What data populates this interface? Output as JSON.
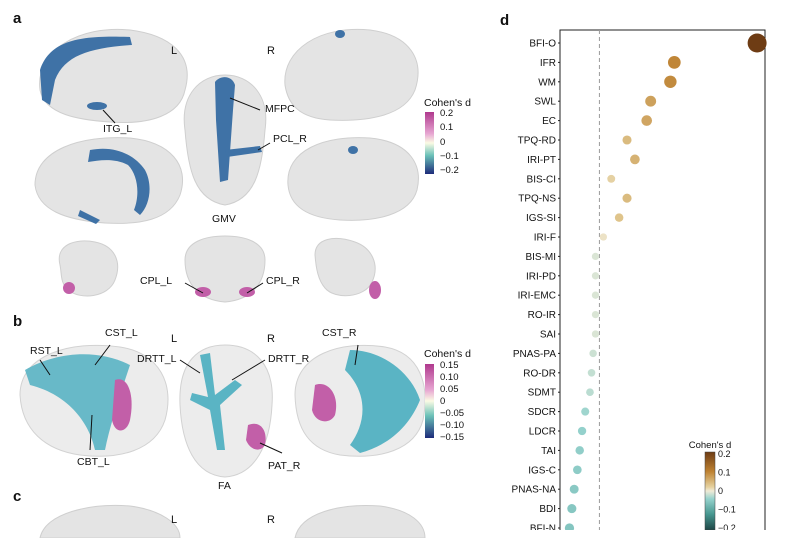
{
  "panels": {
    "a": {
      "letter": "a",
      "hemi_left": "L",
      "hemi_right": "R",
      "modality": "GMV",
      "region_labels": [
        "ITG_L",
        "MFPC",
        "PCL_R",
        "CPL_L",
        "CPL_R"
      ],
      "colorbar": {
        "title": "Cohen's d",
        "ticks": [
          "0.2",
          "0.1",
          "0",
          "−0.1",
          "−0.2"
        ]
      }
    },
    "b": {
      "letter": "b",
      "hemi_left": "L",
      "hemi_right": "R",
      "modality": "FA",
      "region_labels": [
        "RST_L",
        "CST_L",
        "DRTT_L",
        "DRTT_R",
        "CST_R",
        "CBT_L",
        "PAT_R"
      ],
      "colorbar": {
        "title": "Cohen's d",
        "ticks": [
          "0.15",
          "0.10",
          "0.05",
          "0",
          "−0.05",
          "−0.10",
          "−0.15"
        ]
      }
    },
    "c": {
      "letter": "c",
      "hemi_left": "L",
      "hemi_right": "R"
    },
    "d": {
      "letter": "d"
    }
  },
  "colors": {
    "blue_region": "#3f72a6",
    "pink_region": "#c25fa8",
    "tract_cyan": "#5ab4c4",
    "brain_fill": "#e4e4e4",
    "dashed_line": "#9a9a9a"
  },
  "chart_data": {
    "type": "scatter",
    "x_label": "",
    "y_label": "",
    "categories": [
      "BFI-O",
      "IFR",
      "WM",
      "SWL",
      "EC",
      "TPQ-RD",
      "IRI-PT",
      "BIS-CI",
      "TPQ-NS",
      "IGS-SI",
      "IRI-F",
      "BIS-MI",
      "IRI-PD",
      "IRI-EMC",
      "RO-IR",
      "SAI",
      "PNAS-PA",
      "RO-DR",
      "SDMT",
      "SDCR",
      "LDCR",
      "TAI",
      "IGS-C",
      "PNAS-NA",
      "BDI",
      "BFI-N"
    ],
    "values": [
      0.2,
      0.095,
      0.09,
      0.065,
      0.06,
      0.035,
      0.045,
      0.015,
      0.035,
      0.025,
      0.005,
      -0.005,
      -0.005,
      -0.005,
      -0.005,
      -0.005,
      -0.008,
      -0.01,
      -0.012,
      -0.018,
      -0.022,
      -0.025,
      -0.028,
      -0.032,
      -0.035,
      -0.038
    ],
    "reference_line": 0,
    "colorbar": {
      "title": "Cohen's d",
      "ticks": [
        "0.2",
        "0.1",
        "0",
        "−0.1",
        "−0.2"
      ]
    }
  }
}
